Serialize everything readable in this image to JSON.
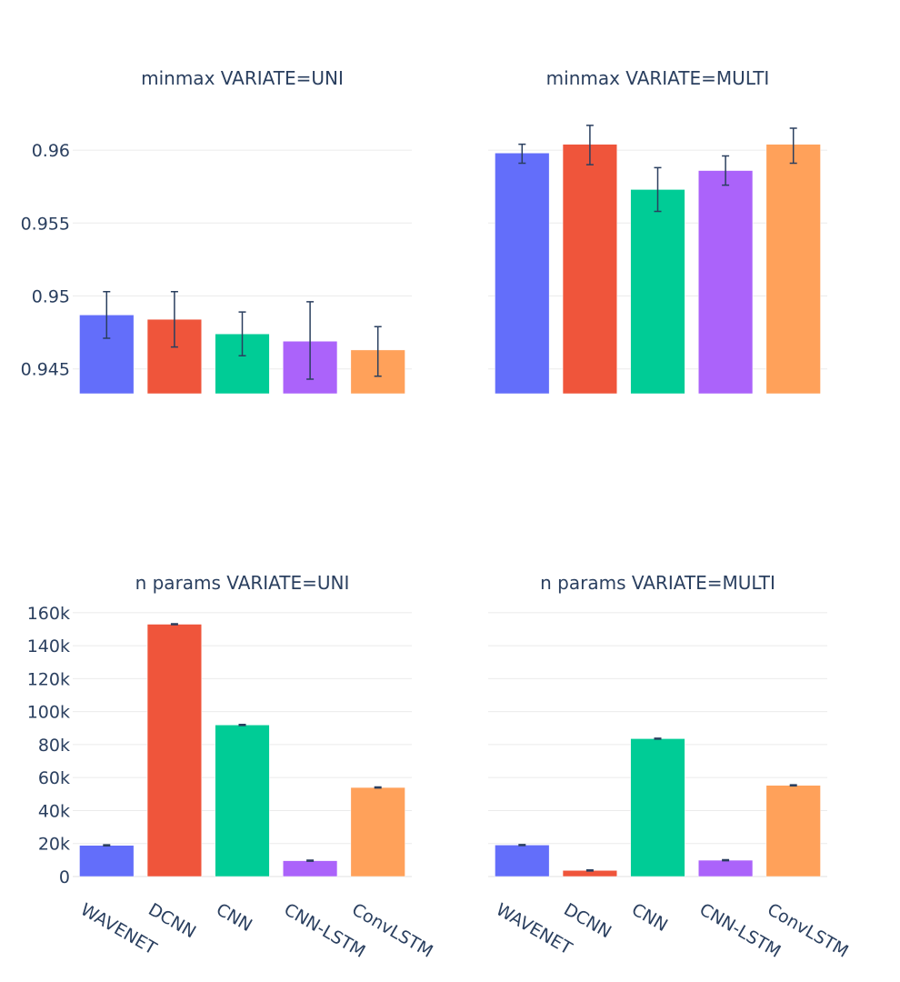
{
  "colors": [
    "#636efa",
    "#ef553b",
    "#00cc96",
    "#ab63fa",
    "#ffa15a"
  ],
  "chart_data": [
    {
      "type": "bar",
      "title": "minmax VARIATE=UNI",
      "categories": [
        "WAVENET",
        "DCNN",
        "CNN",
        "CNN-LSTM",
        "ConvLSTM"
      ],
      "values": [
        0.9487,
        0.9484,
        0.9474,
        0.9469,
        0.9463
      ],
      "error_low": [
        0.9471,
        0.9465,
        0.9459,
        0.9443,
        0.9445
      ],
      "error_high": [
        0.9503,
        0.9503,
        0.9489,
        0.9496,
        0.9479
      ],
      "ylim": [
        0.9433,
        0.962
      ],
      "yticks": [
        0.945,
        0.95,
        0.955,
        0.96
      ],
      "ytick_labels": [
        "0.945",
        "0.95",
        "0.955",
        "0.96"
      ]
    },
    {
      "type": "bar",
      "title": "minmax VARIATE=MULTI",
      "categories": [
        "WAVENET",
        "DCNN",
        "CNN",
        "CNN-LSTM",
        "ConvLSTM"
      ],
      "values": [
        0.9598,
        0.9604,
        0.9573,
        0.9586,
        0.9604
      ],
      "error_low": [
        0.9591,
        0.959,
        0.9558,
        0.9576,
        0.9591
      ],
      "error_high": [
        0.9604,
        0.9617,
        0.9588,
        0.9596,
        0.9615
      ],
      "ylim": [
        0.9433,
        0.962
      ],
      "yticks": [
        0.945,
        0.95,
        0.955,
        0.96
      ],
      "ytick_labels": []
    },
    {
      "type": "bar",
      "title": "n params VARIATE=UNI",
      "categories": [
        "WAVENET",
        "DCNN",
        "CNN",
        "CNN-LSTM",
        "ConvLSTM"
      ],
      "values": [
        18900,
        153000,
        91900,
        9600,
        54000
      ],
      "error_low": [
        18600,
        152700,
        91600,
        9300,
        53700
      ],
      "error_high": [
        19200,
        153300,
        92200,
        9900,
        54300
      ],
      "ylim": [
        0,
        161000
      ],
      "yticks": [
        0,
        20000,
        40000,
        60000,
        80000,
        100000,
        120000,
        140000,
        160000
      ],
      "ytick_labels": [
        "0",
        "20k",
        "40k",
        "60k",
        "80k",
        "100k",
        "120k",
        "140k",
        "160k"
      ]
    },
    {
      "type": "bar",
      "title": "n params VARIATE=MULTI",
      "categories": [
        "WAVENET",
        "DCNN",
        "CNN",
        "CNN-LSTM",
        "ConvLSTM"
      ],
      "values": [
        19100,
        3700,
        83600,
        9900,
        55300
      ],
      "error_low": [
        18800,
        3400,
        83300,
        9600,
        55000
      ],
      "error_high": [
        19400,
        4000,
        83900,
        10200,
        55600
      ],
      "ylim": [
        0,
        161000
      ],
      "yticks": [
        0,
        20000,
        40000,
        60000,
        80000,
        100000,
        120000,
        140000,
        160000
      ],
      "ytick_labels": []
    }
  ]
}
